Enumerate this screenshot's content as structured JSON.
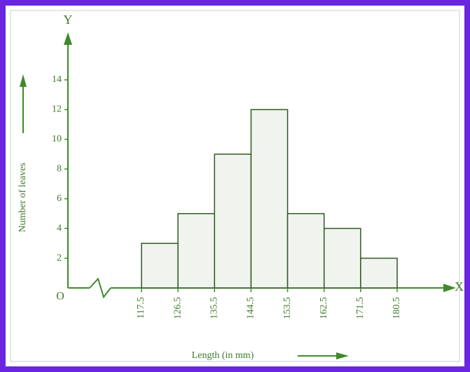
{
  "chart_data": {
    "type": "histogram",
    "y_axis_letter": "Y",
    "x_axis_letter": "X",
    "origin_label": "O",
    "y_label": "Number of leaves",
    "x_label": "Length (in mm)",
    "bins": [
      117.5,
      126.5,
      135.5,
      144.5,
      153.5,
      162.5,
      171.5,
      180.5
    ],
    "values": [
      3,
      5,
      9,
      12,
      5,
      4,
      2
    ],
    "color": "#f1f3ef",
    "xlim": [
      117.5,
      180.5
    ],
    "xticks": [
      117.5,
      126.5,
      135.5,
      144.5,
      153.5,
      162.5,
      171.5,
      180.5
    ],
    "ylim": [
      0,
      14
    ],
    "yticks": [
      2,
      4,
      6,
      8,
      10,
      12,
      14
    ]
  }
}
